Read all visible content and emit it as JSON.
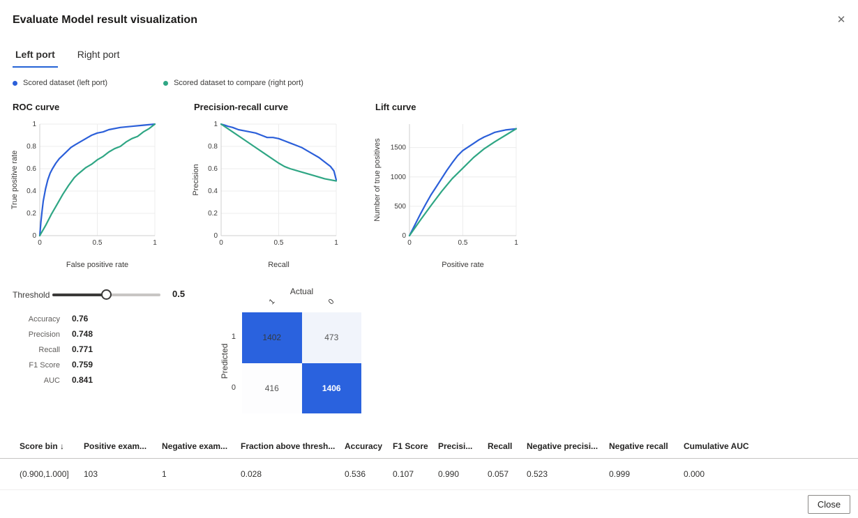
{
  "dialog": {
    "title": "Evaluate Model result visualization",
    "close_icon": "✕"
  },
  "tabs": [
    {
      "label": "Left port",
      "active": true
    },
    {
      "label": "Right port",
      "active": false
    }
  ],
  "legend": [
    {
      "label": "Scored dataset (left port)",
      "color": "#2b5fd9"
    },
    {
      "label": "Scored dataset to compare (right port)",
      "color": "#2fa684"
    }
  ],
  "chart_data": [
    {
      "type": "line",
      "title": "ROC curve",
      "xlabel": "False positive rate",
      "ylabel": "True positive rate",
      "xlim": [
        0,
        1
      ],
      "ylim": [
        0,
        1
      ],
      "xticks": [
        0,
        0.5,
        1
      ],
      "yticks": [
        0,
        0.2,
        0.4,
        0.6,
        0.8,
        1
      ],
      "grid": true,
      "legend_position": "top-of-dialog",
      "series": [
        {
          "name": "Scored dataset (left port)",
          "color": "#2b5fd9",
          "x": [
            0,
            0.005,
            0.01,
            0.02,
            0.03,
            0.05,
            0.07,
            0.09,
            0.11,
            0.14,
            0.17,
            0.2,
            0.24,
            0.27,
            0.3,
            0.35,
            0.4,
            0.45,
            0.5,
            0.55,
            0.6,
            0.7,
            0.8,
            0.9,
            1
          ],
          "y": [
            0,
            0.06,
            0.12,
            0.22,
            0.31,
            0.42,
            0.5,
            0.56,
            0.6,
            0.65,
            0.69,
            0.72,
            0.76,
            0.79,
            0.81,
            0.84,
            0.87,
            0.9,
            0.92,
            0.93,
            0.95,
            0.97,
            0.98,
            0.99,
            1
          ]
        },
        {
          "name": "Scored dataset to compare (right port)",
          "color": "#2fa684",
          "x": [
            0,
            0.05,
            0.1,
            0.15,
            0.2,
            0.25,
            0.3,
            0.33,
            0.4,
            0.45,
            0.5,
            0.55,
            0.6,
            0.65,
            0.7,
            0.75,
            0.8,
            0.85,
            0.9,
            0.95,
            1
          ],
          "y": [
            0,
            0.09,
            0.19,
            0.28,
            0.37,
            0.45,
            0.52,
            0.55,
            0.61,
            0.64,
            0.68,
            0.71,
            0.75,
            0.78,
            0.8,
            0.84,
            0.87,
            0.89,
            0.93,
            0.96,
            1
          ]
        }
      ]
    },
    {
      "type": "line",
      "title": "Precision-recall curve",
      "xlabel": "Recall",
      "ylabel": "Precision",
      "xlim": [
        0,
        1
      ],
      "ylim": [
        0,
        1
      ],
      "xticks": [
        0,
        0.5,
        1
      ],
      "yticks": [
        0,
        0.2,
        0.4,
        0.6,
        0.8,
        1
      ],
      "grid": true,
      "series": [
        {
          "name": "Scored dataset (left port)",
          "color": "#2b5fd9",
          "x": [
            0,
            0.03,
            0.06,
            0.1,
            0.15,
            0.2,
            0.25,
            0.3,
            0.35,
            0.4,
            0.45,
            0.5,
            0.55,
            0.6,
            0.65,
            0.7,
            0.75,
            0.8,
            0.85,
            0.9,
            0.95,
            0.98,
            1
          ],
          "y": [
            1,
            0.99,
            0.98,
            0.97,
            0.95,
            0.94,
            0.93,
            0.92,
            0.9,
            0.88,
            0.88,
            0.87,
            0.85,
            0.83,
            0.81,
            0.79,
            0.76,
            0.73,
            0.7,
            0.66,
            0.62,
            0.58,
            0.5
          ]
        },
        {
          "name": "Scored dataset to compare (right port)",
          "color": "#2fa684",
          "x": [
            0,
            0.1,
            0.2,
            0.3,
            0.4,
            0.5,
            0.55,
            0.6,
            0.7,
            0.8,
            0.9,
            1
          ],
          "y": [
            1,
            0.93,
            0.86,
            0.79,
            0.72,
            0.65,
            0.62,
            0.6,
            0.57,
            0.54,
            0.51,
            0.49
          ]
        }
      ]
    },
    {
      "type": "line",
      "title": "Lift curve",
      "xlabel": "Positive rate",
      "ylabel": "Number of true positives",
      "xlim": [
        0,
        1
      ],
      "ylim": [
        0,
        1900
      ],
      "xticks": [
        0,
        0.5,
        1
      ],
      "yticks": [
        0,
        500,
        1000,
        1500
      ],
      "grid": true,
      "series": [
        {
          "name": "Scored dataset (left port)",
          "color": "#2b5fd9",
          "x": [
            0,
            0.05,
            0.1,
            0.15,
            0.2,
            0.25,
            0.3,
            0.35,
            0.4,
            0.45,
            0.5,
            0.55,
            0.6,
            0.65,
            0.7,
            0.75,
            0.8,
            0.85,
            0.9,
            1
          ],
          "y": [
            0,
            180,
            360,
            530,
            690,
            830,
            970,
            1110,
            1240,
            1360,
            1450,
            1510,
            1570,
            1630,
            1680,
            1720,
            1760,
            1780,
            1800,
            1820
          ]
        },
        {
          "name": "Scored dataset to compare (right port)",
          "color": "#2fa684",
          "x": [
            0,
            0.1,
            0.2,
            0.3,
            0.4,
            0.5,
            0.6,
            0.7,
            0.8,
            0.9,
            1
          ],
          "y": [
            0,
            260,
            510,
            750,
            970,
            1150,
            1330,
            1480,
            1600,
            1710,
            1820
          ]
        }
      ]
    }
  ],
  "threshold": {
    "label": "Threshold",
    "value": "0.5",
    "percent": 50
  },
  "metrics": [
    {
      "label": "Accuracy",
      "value": "0.76"
    },
    {
      "label": "Precision",
      "value": "0.748"
    },
    {
      "label": "Recall",
      "value": "0.771"
    },
    {
      "label": "F1 Score",
      "value": "0.759"
    },
    {
      "label": "AUC",
      "value": "0.841"
    }
  ],
  "confusion_matrix": {
    "x_title": "Actual",
    "y_title": "Predicted",
    "col_labels": [
      "1",
      "0"
    ],
    "row_labels": [
      "1",
      "0"
    ],
    "cells": [
      [
        {
          "value": "1402",
          "bg": "#2a62de",
          "text": "#333a42",
          "bold": false
        },
        {
          "value": "473",
          "bg": "#f1f4fb",
          "text": "#555555",
          "bold": false
        }
      ],
      [
        {
          "value": "416",
          "bg": "#fdfdfe",
          "text": "#555555",
          "bold": false
        },
        {
          "value": "1406",
          "bg": "#2a62de",
          "text": "#ffffff",
          "bold": true
        }
      ]
    ]
  },
  "table": {
    "headers": [
      "Score bin ↓",
      "Positive exam...",
      "Negative exam...",
      "Fraction above thresh...",
      "Accuracy",
      "F1 Score",
      "Precisi...",
      "Recall",
      "Negative precisi...",
      "Negative recall",
      "Cumulative AUC"
    ],
    "rows": [
      [
        "(0.900,1.000]",
        "103",
        "1",
        "0.028",
        "0.536",
        "0.107",
        "0.990",
        "0.057",
        "0.523",
        "0.999",
        "0.000"
      ]
    ]
  },
  "footer": {
    "close_label": "Close"
  }
}
